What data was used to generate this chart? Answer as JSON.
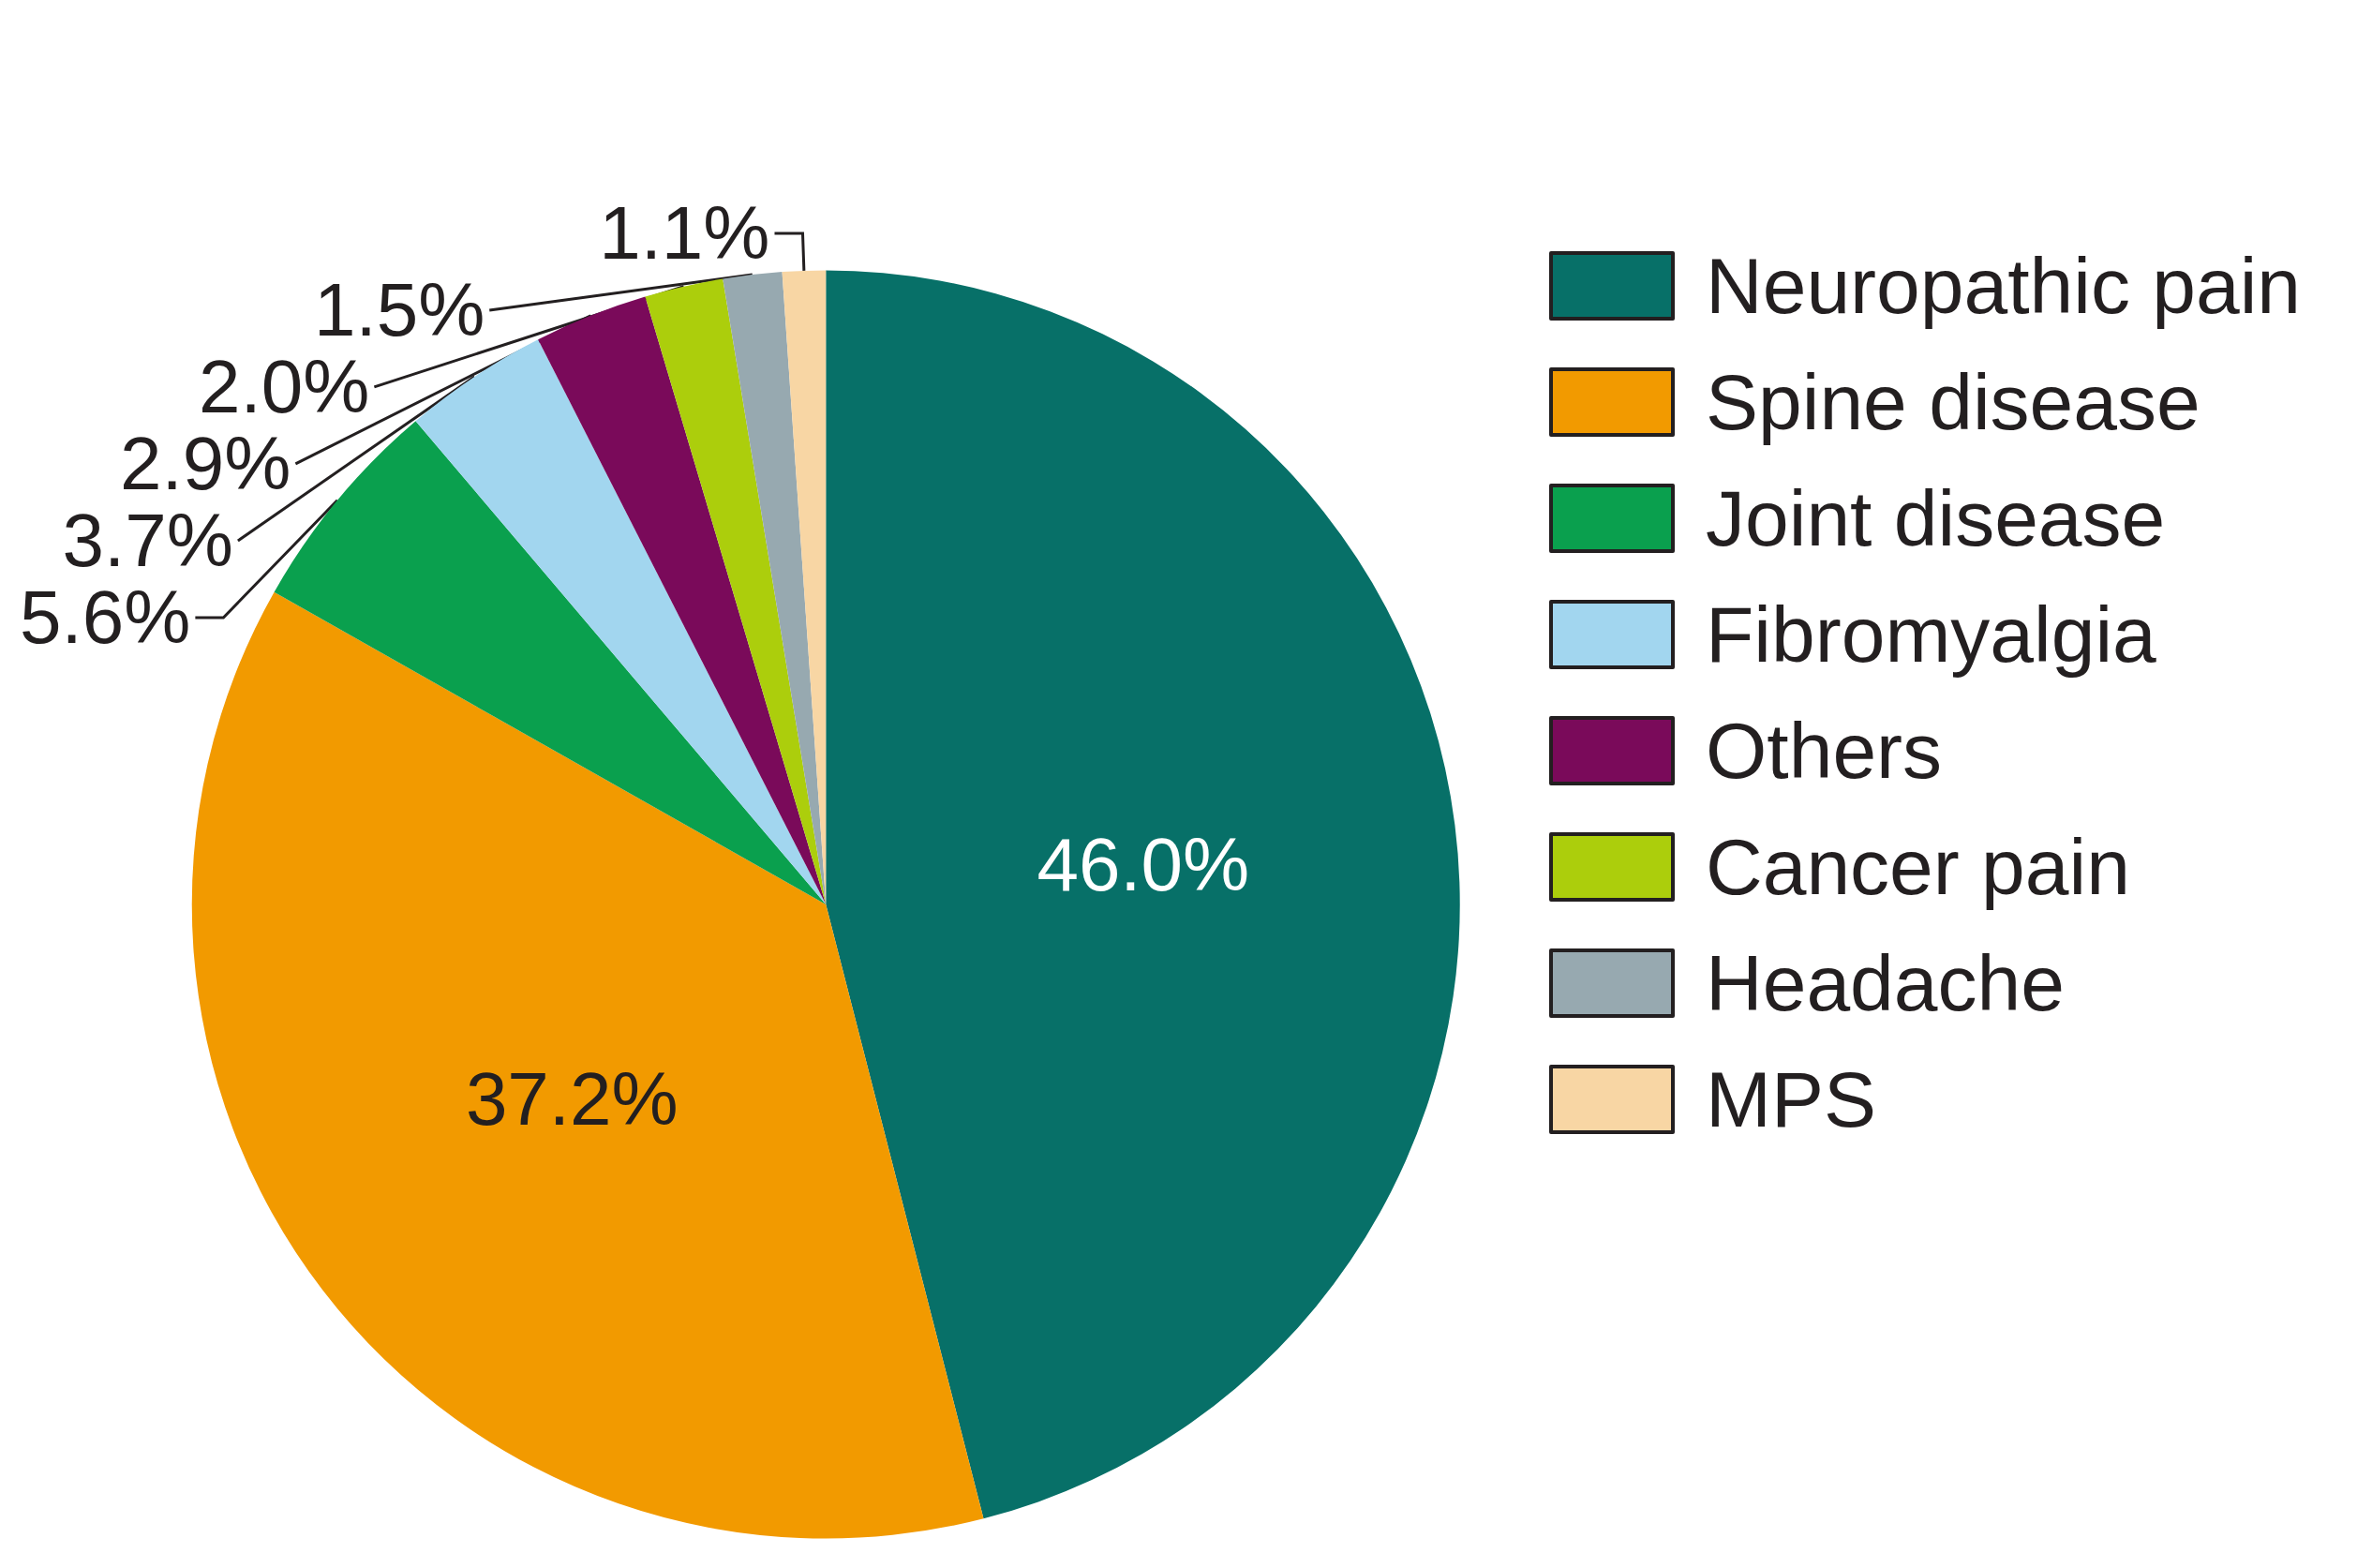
{
  "chart_data": {
    "type": "pie",
    "categories": [
      "Neuropathic pain",
      "Spine disease",
      "Joint disease",
      "Fibromyalgia",
      "Others",
      "Cancer pain",
      "Headache",
      "MPS"
    ],
    "values": [
      46.0,
      37.2,
      5.6,
      3.7,
      2.9,
      2.0,
      1.5,
      1.1
    ],
    "value_labels": [
      "46.0%",
      "37.2%",
      "5.6%",
      "3.7%",
      "2.9%",
      "2.0%",
      "1.5%",
      "1.1%"
    ],
    "colors": [
      "#077068",
      "#f29a00",
      "#0aa04e",
      "#a2d6ef",
      "#7a0a5a",
      "#acce0c",
      "#97a9b0",
      "#f8d6a4"
    ],
    "legend": "right"
  }
}
